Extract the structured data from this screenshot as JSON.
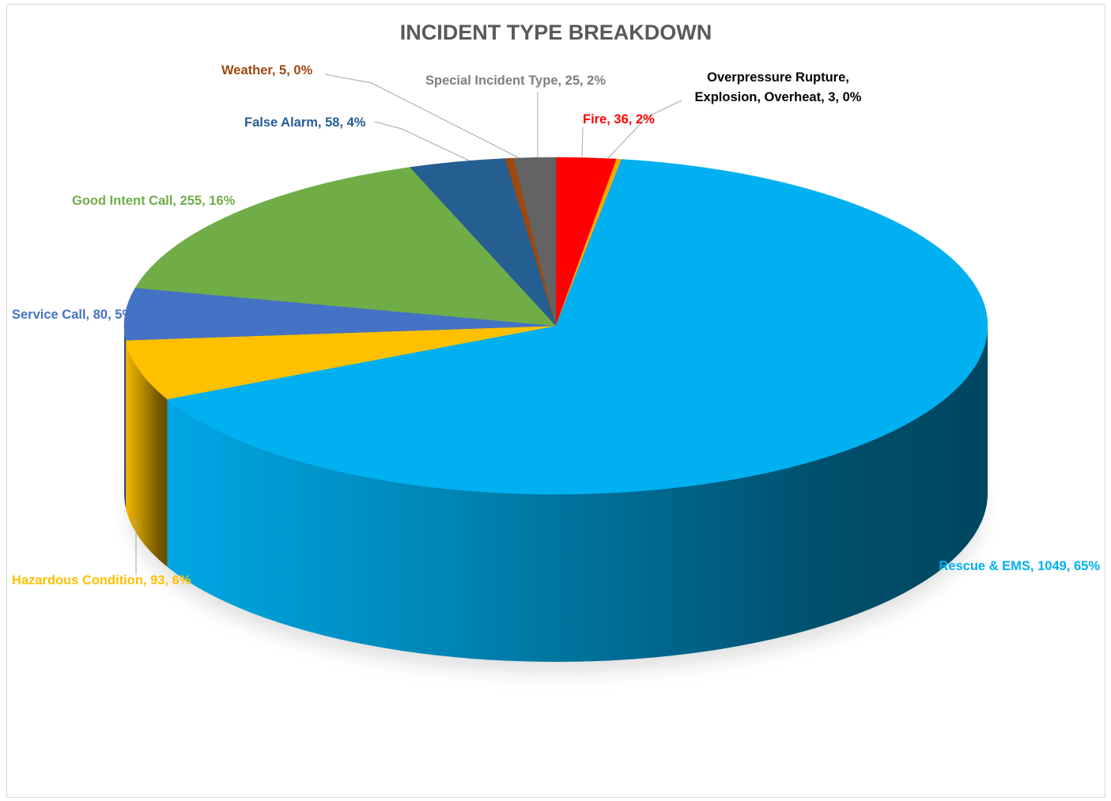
{
  "chart_data": {
    "type": "pie",
    "title": "INCIDENT TYPE BREAKDOWN",
    "slices": [
      {
        "name": "Fire",
        "value": 36,
        "label": "Fire, 36, 2%",
        "color": "#ff0000",
        "label_color": "#ff0000"
      },
      {
        "name": "Overpressure Rupture, Explosion, Overheat",
        "value": 3,
        "label_lines": [
          "Overpressure Rupture,",
          "Explosion, Overheat, 3, 0%"
        ],
        "color": "#ffa500",
        "label_color": "#000000"
      },
      {
        "name": "Rescue & EMS",
        "value": 1049,
        "label": "Rescue & EMS, 1049, 65%",
        "color": "#00b0f0",
        "label_color": "#00b0f0"
      },
      {
        "name": "Hazardous Condition",
        "value": 93,
        "label": "Hazardous Condition, 93, 6%",
        "color": "#ffc000",
        "label_color": "#ffc000"
      },
      {
        "name": "Service Call",
        "value": 80,
        "label": "Service Call, 80, 5%",
        "color": "#4472c4",
        "label_color": "#4472c4"
      },
      {
        "name": "Good Intent Call",
        "value": 255,
        "label": "Good Intent Call, 255, 16%",
        "color": "#70ad47",
        "label_color": "#70ad47"
      },
      {
        "name": "False Alarm",
        "value": 58,
        "label": "False Alarm, 58, 4%",
        "color": "#255e91",
        "label_color": "#255e91"
      },
      {
        "name": "Weather",
        "value": 5,
        "label": "Weather, 5, 0%",
        "color": "#9e480e",
        "label_color": "#9e480e"
      },
      {
        "name": "Special Incident Type",
        "value": 25,
        "label": "Special Incident Type, 25, 2%",
        "color": "#636363",
        "label_color": "#7f7f7f"
      }
    ]
  }
}
